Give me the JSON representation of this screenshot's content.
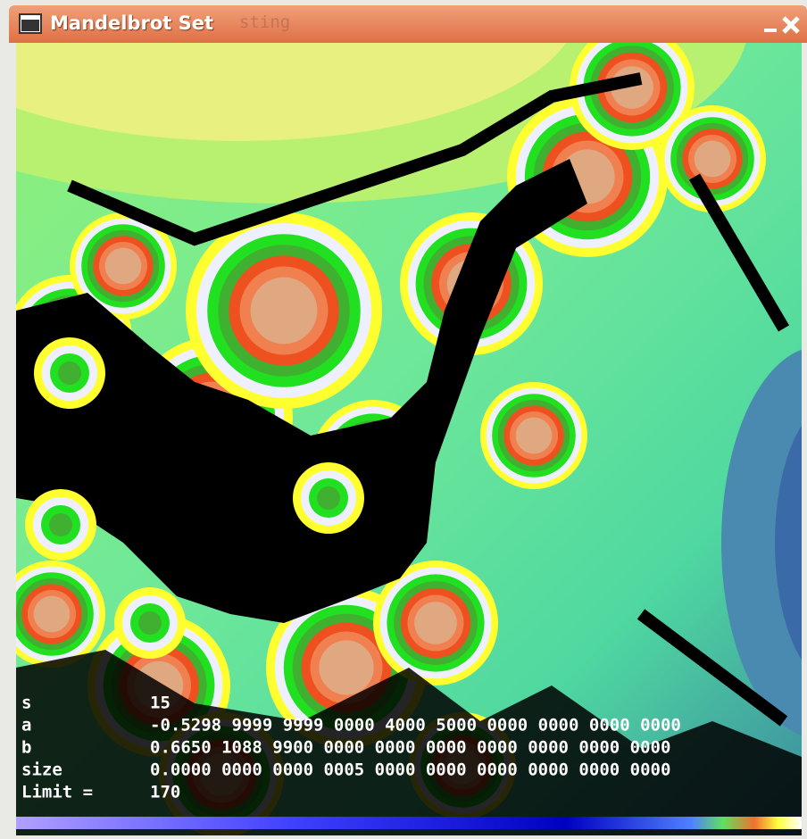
{
  "window": {
    "title": "Mandelbrot Set",
    "ghost_title": "sting"
  },
  "overlay": {
    "rows": [
      {
        "label": "s",
        "value": "15"
      },
      {
        "label": "a",
        "value": "-0.5298 9999 9999 0000 4000 5000 0000 0000 0000 0000"
      },
      {
        "label": "b",
        "value": "0.6650 1088 9900 0000 0000 0000 0000 0000 0000 0000"
      },
      {
        "label": "size",
        "value": "0.0000 0000 0000 0005 0000 0000 0000 0000 0000 0000"
      },
      {
        "label": "Limit =",
        "value": "170"
      }
    ]
  }
}
